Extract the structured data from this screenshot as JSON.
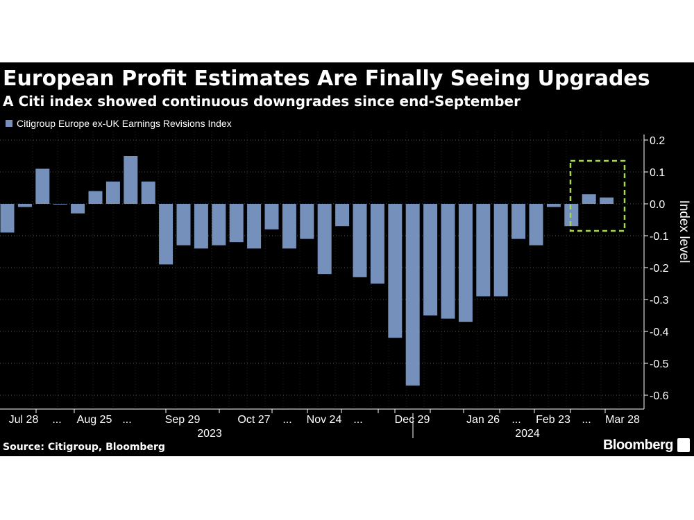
{
  "header": {
    "title": "European Profit Estimates Are Finally Seeing Upgrades",
    "subtitle": "A Citi index showed continuous downgrades since end-September"
  },
  "footer": {
    "source": "Source: Citigroup, Bloomberg",
    "brand": "Bloomberg",
    "brand_icon": "bloomberg-chart-icon"
  },
  "colors": {
    "background": "#000000",
    "bar": "#7590BA",
    "text": "#ffffff",
    "gridline": "#555555",
    "highlight": "#A8D84E"
  },
  "chart_data": {
    "type": "bar",
    "title": "European Profit Estimates Are Finally Seeing Upgrades",
    "subtitle": "A Citi index showed continuous downgrades since end-September",
    "series": [
      {
        "name": "Citigroup Europe ex-UK Earnings Revisions Index",
        "values": [
          -0.09,
          -0.01,
          0.11,
          0.0,
          -0.03,
          0.04,
          0.07,
          0.15,
          0.07,
          -0.19,
          -0.13,
          -0.14,
          -0.13,
          -0.12,
          -0.14,
          -0.08,
          -0.14,
          -0.11,
          -0.22,
          -0.07,
          -0.23,
          -0.25,
          -0.42,
          -0.57,
          -0.35,
          -0.36,
          -0.37,
          -0.29,
          -0.29,
          -0.11,
          -0.13,
          -0.01,
          -0.07,
          0.03,
          0.02
        ]
      }
    ],
    "x_tick_labels": [
      "Jul 28",
      "...",
      "Aug 25",
      "...",
      "Sep 29",
      "Oct 27",
      "...",
      "Nov 24",
      "...",
      "Dec 29",
      "Jan 26",
      "...",
      "Feb 23",
      "...",
      "Mar 28"
    ],
    "x_year_labels": [
      "2023",
      "2024"
    ],
    "ylabel": "Index level",
    "y_ticks": [
      0.2,
      0.1,
      0.0,
      -0.1,
      -0.2,
      -0.3,
      -0.4,
      -0.5,
      -0.6
    ],
    "y_tick_labels": [
      "0.2",
      "0.1",
      "0.0",
      "-0.1",
      "-0.2",
      "-0.3",
      "-0.4",
      "-0.5",
      "-0.6"
    ],
    "ylim": [
      -0.63,
      0.2
    ],
    "grid": true,
    "y_axis_position": "right",
    "legend_position": "top-left",
    "highlight_box": "last three bars, dashed green"
  }
}
